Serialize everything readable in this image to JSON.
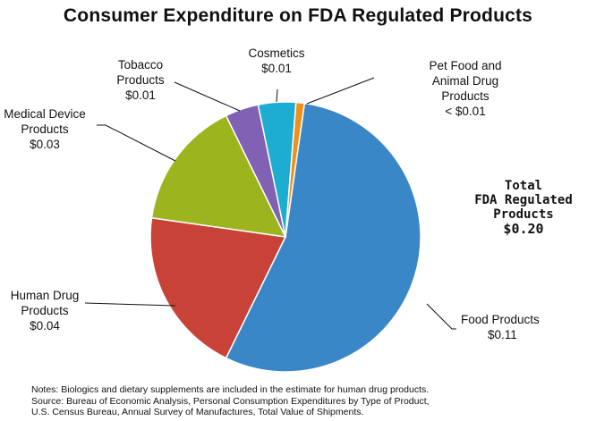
{
  "chart_data": {
    "type": "pie",
    "title": "Consumer Expenditure on FDA Regulated Products",
    "slices": [
      {
        "name_lines": [
          "Food Products"
        ],
        "value_label": "$0.11",
        "share": 0.55,
        "color": "#3a87c8"
      },
      {
        "name_lines": [
          "Human Drug",
          "Products"
        ],
        "value_label": "$0.04",
        "share": 0.2,
        "color": "#c94238"
      },
      {
        "name_lines": [
          "Medical Device",
          "Products"
        ],
        "value_label": "$0.03",
        "share": 0.155,
        "color": "#9cb51f"
      },
      {
        "name_lines": [
          "Tobacco",
          "Products"
        ],
        "value_label": "$0.01",
        "share": 0.04,
        "color": "#8061b3"
      },
      {
        "name_lines": [
          "Cosmetics"
        ],
        "value_label": "$0.01",
        "share": 0.045,
        "color": "#1cadd1"
      },
      {
        "name_lines": [
          "Pet Food and",
          "Animal Drug",
          "Products"
        ],
        "value_label": "< $0.01",
        "share": 0.01,
        "color": "#f08f1a"
      }
    ],
    "total": {
      "lines": [
        "Total",
        "FDA Regulated",
        "Products"
      ],
      "value": "$0.20"
    }
  },
  "notes": [
    "Notes:  Biologics and dietary supplements are included in the estimate for human drug products.",
    "Source: Bureau of Economic Analysis, Personal Consumption Expenditures by Type of  Product,",
    "U.S. Census Bureau, Annual Survey of Manufactures, Total Value of Shipments."
  ]
}
